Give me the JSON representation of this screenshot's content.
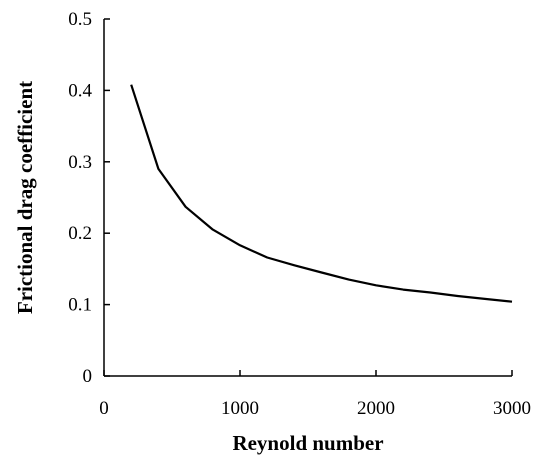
{
  "chart_data": {
    "type": "line",
    "xlabel": "Reynold number",
    "ylabel": "Frictional drag coefficient",
    "xlim": [
      0,
      3000
    ],
    "ylim": [
      0,
      0.5
    ],
    "x_ticks": [
      0,
      1000,
      2000,
      3000
    ],
    "x_tick_labels": [
      "0",
      "1000",
      "2000",
      "3000"
    ],
    "y_ticks": [
      0,
      0.1,
      0.2,
      0.3,
      0.4,
      0.5
    ],
    "y_tick_labels": [
      "0",
      "0.1",
      "0.2",
      "0.3",
      "0.4",
      "0.5"
    ],
    "grid": false,
    "legend": "none",
    "line_color": "#000000",
    "series": [
      {
        "x": [
          200,
          400,
          600,
          800,
          1000,
          1200,
          1400,
          1600,
          1800,
          2000,
          2200,
          2400,
          2600,
          2800,
          3000
        ],
        "y": [
          0.408,
          0.29,
          0.237,
          0.205,
          0.183,
          0.166,
          0.155,
          0.145,
          0.135,
          0.127,
          0.121,
          0.117,
          0.112,
          0.108,
          0.104
        ]
      }
    ]
  }
}
